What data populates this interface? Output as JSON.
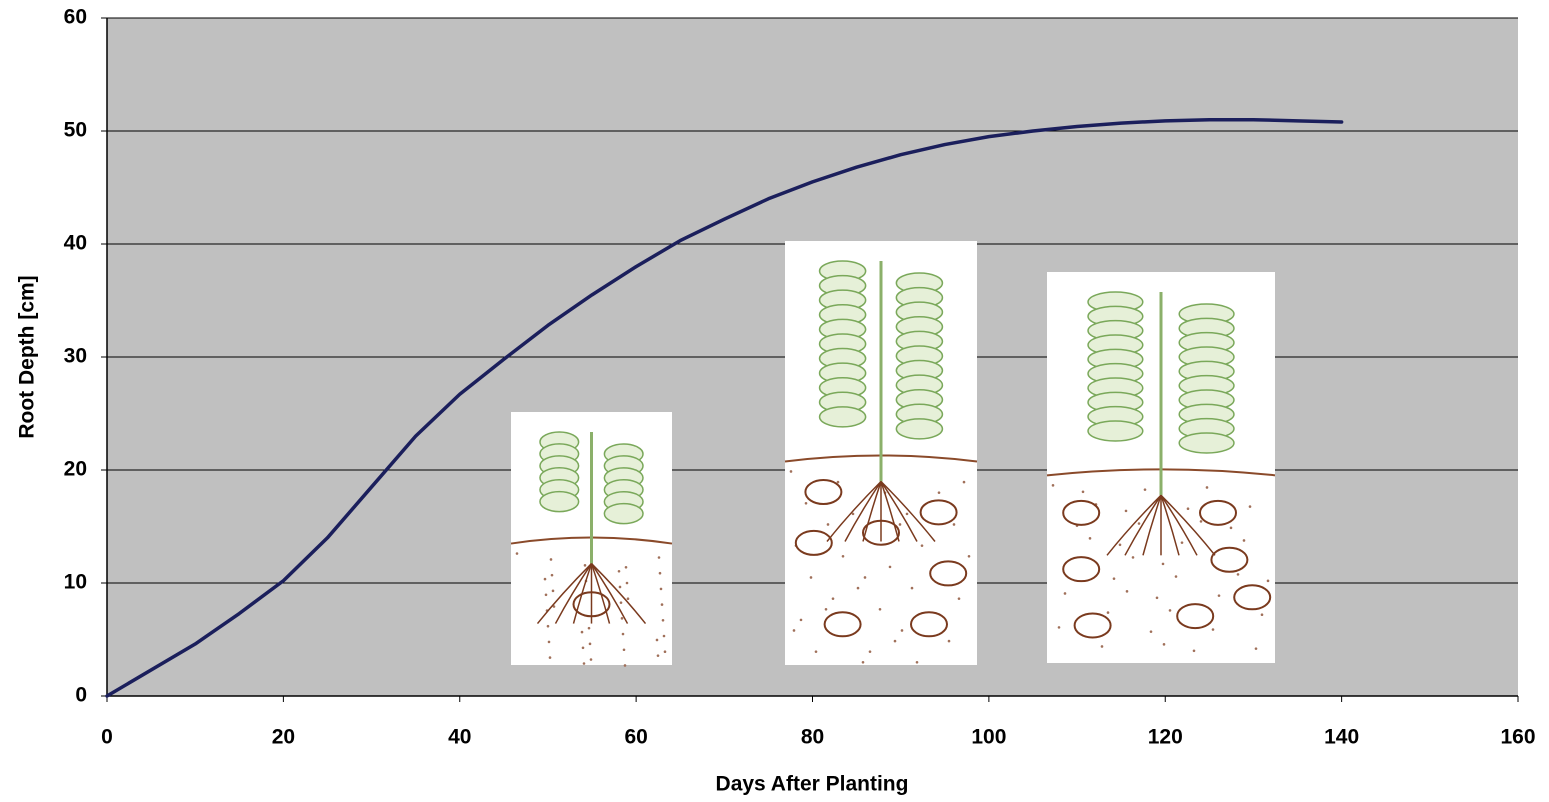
{
  "chart_data": {
    "type": "line",
    "x_label": "Days After Planting",
    "y_label": "Root Depth [cm]",
    "x": [
      0,
      10,
      15,
      20,
      25,
      30,
      35,
      40,
      45,
      50,
      55,
      60,
      65,
      70,
      75,
      80,
      85,
      90,
      95,
      100,
      105,
      110,
      115,
      120,
      125,
      130,
      135,
      140
    ],
    "values": [
      0,
      4.6,
      7.3,
      10.2,
      14,
      18.5,
      23,
      26.7,
      29.8,
      32.8,
      35.5,
      38,
      40.3,
      42.2,
      44,
      45.5,
      46.8,
      47.9,
      48.8,
      49.5,
      50,
      50.4,
      50.7,
      50.9,
      51,
      51,
      50.9,
      50.8
    ],
    "color": "#1b1f5c",
    "xlim": [
      0,
      160
    ],
    "xticks": [
      0,
      20,
      40,
      60,
      80,
      100,
      120,
      140,
      160
    ],
    "ylim": [
      0,
      60
    ],
    "yticks": [
      0,
      10,
      20,
      30,
      40,
      50,
      60
    ],
    "grid": true
  }
}
